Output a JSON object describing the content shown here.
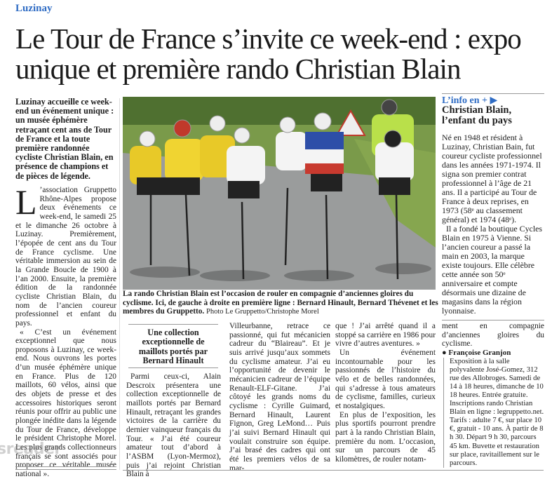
{
  "kicker": "Luzinay",
  "headline": {
    "line1": "Le Tour de France s’invite ce week-end : expo",
    "line2": "unique et première rando Christian Blain"
  },
  "lede": "Luzinay accueille ce week-end un événement unique : un musée éphémère retraçant cent ans de Tour de France et la toute première randonnée cycliste Christian Blain, en présence de champions et de pièces de légende.",
  "body": {
    "dropcap": "L",
    "p1_rest": "’association Gruppetto Rhône-Alpes propose deux événements ce week-end, le samedi 25 et le dimanche 26 octobre à Luzinay. Premièrement, l’épopée de cent ans du Tour de France cyclisme. Une véritable immersion au sein de la Grande Boucle de 1900 à l’an 2000. Ensuite, la première édition de la randonnée cycliste Christian Blain, du nom de l’ancien coureur professionnel et enfant du pays.",
    "p2": "« C’est un événement exceptionnel que nous proposons à Luzinay, ce week-end. Nous ouvrons les portes d’un musée éphémère unique en France. Plus de 120 maillots, 60 vélos, ainsi que des objets de presse et des accessoires historiques seront réunis pour offrir au public une plongée inédite dans la légende du Tour de France, développe le président Christophe Morel. Les plus grands collectionneurs français se sont associés pour proposer ce véritable musée national »."
  },
  "photo": {
    "caption": "La rando Christian Blain est l’occasion de rouler en compagnie d’anciennes gloires du cyclisme. Ici, de gauche à droite en première ligne : Bernard Hinault, Bernard Thévenet et les membres du Gruppetto.",
    "credit": "Photo Le Gruppetto/Christophe Morel"
  },
  "subhead": "Une collection exceptionnelle de maillots portés par Bernard Hinault",
  "columns": {
    "c1": "Parmi ceux-ci, Alain Descroix présentera une collection exceptionnelle de maillots portés par Bernard Hinault, retraçant les grandes victoires de la carrière du dernier vainqueur français du Tour. « J’ai été coureur amateur tout d’abord à l’ASBM (Lyon-Mermoz), puis j’ai rejoint Christian Blain à",
    "c2": "Villeurbanne, retrace ce passionné, qui fut mécanicien cadreur du “Blaireau”. Et je suis arrivé jusqu’aux sommets du cyclisme amateur. J’ai eu l’opportunité de devenir le mécanicien cadreur de l’équipe Renault-ELF-Gitane. J’ai côtoyé les grands noms du cyclisme : Cyrille Guimard, Bernard Hinault, Laurent Fignon, Greg LeMond… Puis j’ai suivi Bernard Hinault qui voulait construire son équipe. J’ai brasé des cadres qui ont été les premiers vélos de sa mar-",
    "c3_p1": "que ! J’ai arrêté quand il a stoppé sa carrière en 1986 pour vivre d’autres aventures. »",
    "c3_p2": "Un événement incontournable pour les passionnés de l’histoire du vélo et de belles randonnées, qui s’adresse à tous amateurs de cyclisme, familles, curieux et nostalgiques.",
    "c3_p3": "En plus de l’exposition, les plus sportifs pourront prendre part à la rando Christian Blain, première du nom. L’occasion, sur un parcours de 45 kilomètres, de rouler notam-",
    "c4": "ment en compagnie d’anciennes gloires du cyclisme.",
    "author": "Françoise Granjon",
    "practical": "Exposition à la salle polyvalente José-Gomez, 312 rue des Allobroges. Samedi de 14 à 18 heures, dimanche de 10 18 heures. Entrée gratuite. Inscriptions rando Christian Blain en ligne : legruppetto.net. Tarifs : adulte 7 €, sur place 10 €, gratuit - 10 ans. À partir de 8 h 30. Départ 9 h 30, parcours 45 km. Buvette et restauration sur place, ravitaillement sur le parcours."
  },
  "info": {
    "label": "L’info en +",
    "arrow_icon": "play-arrow-icon",
    "title": "Christian Blain, l’enfant du pays",
    "p1": "Né en 1948 et résident à Luzinay, Christian Bain, fut coureur cycliste professionnel dans les années 1971-1974. Il signa son premier contrat professionnel à l’âge de 21 ans. Il a participé au Tour de France à deux reprises, en 1973 (58ᵉ au classement général) et 1974 (48ᵉ).",
    "p2": "Il a fondé la boutique Cycles Blain en 1975 à Vienne. Si l’ancien coureur a passé la main en 2003, la marque existe toujours. Elle célèbre cette année son 50ᵉ anniversaire et compte désormais une dizaine de magasins dans la région lyonnaise."
  },
  "watermark": "sreader",
  "colors": {
    "accent": "#2f6cc4",
    "text": "#1d1d1d"
  }
}
